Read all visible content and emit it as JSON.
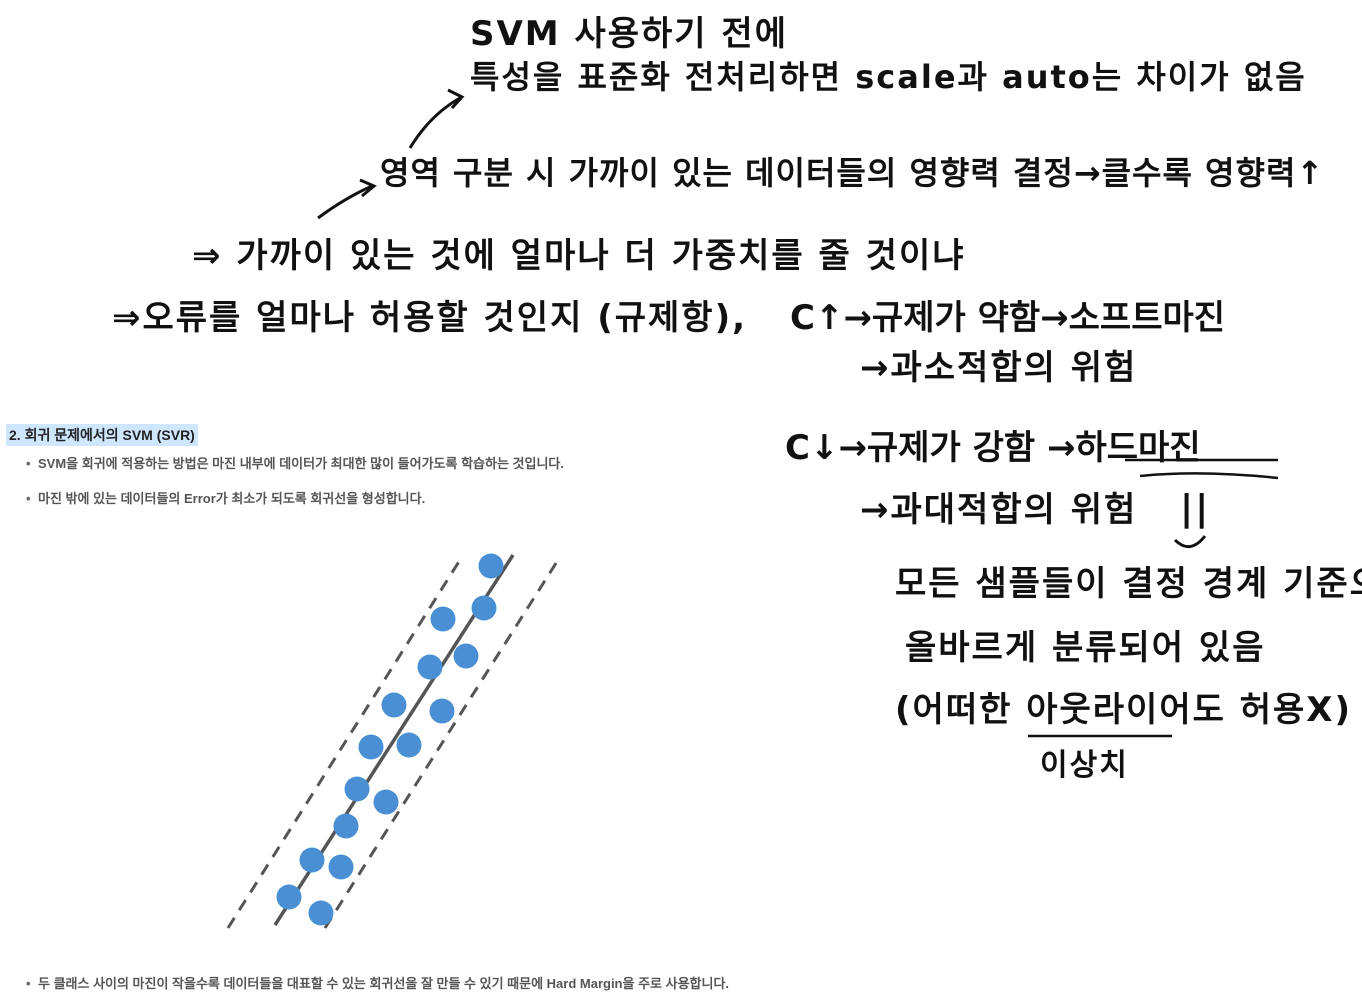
{
  "notes": {
    "line1": "SVM 사용하기 전에",
    "line2": "특성을 표준화 전처리하면  scale과 auto는 차이가 없음",
    "line3": "영역 구분 시 가까이 있는 데이터들의 영향력 결정→클수록 영향력↑",
    "line4": "⇒ 가까이 있는 것에 얼마나 더 가중치를 줄 것이냐",
    "line5": "⇒오류를 얼마나 허용할 것인지 (규제항),",
    "c_up": "C↑→규제가 약함→소프트마진",
    "c_up_risk": "→과소적합의 위험",
    "c_down": "C↓→규제가 강함 →하드마진",
    "c_down_risk": "→과대적합의 위험",
    "equals": "||",
    "hard1": "모든 샘플들이 결정 경계 기준으로",
    "hard2": "올바르게 분류되어 있음",
    "hard3": "(어떠한 아웃라이어도 허용X)",
    "outlier_gloss": "이상치"
  },
  "section": {
    "title": "2. 회귀 문제에서의 SVM (SVR)",
    "bullets": [
      "SVM을 회귀에 적용하는 방법은 마진 내부에 데이터가 최대한 많이 들어가도록 학습하는 것입니다.",
      "마진 밖에 있는 데이터들의 Error가 최소가 되도록 회귀선을 형성합니다."
    ],
    "footer_bullet": "두 클래스 사이의 마진이 작을수록 데이터들을 대표할 수 있는 회귀선을 잘 만들 수 있기 때문에 Hard Margin을 주로 사용합니다."
  },
  "colors": {
    "point": "#4a8fd4",
    "line": "#555555",
    "highlight": "#cfe6ff",
    "ink": "#111111"
  }
}
